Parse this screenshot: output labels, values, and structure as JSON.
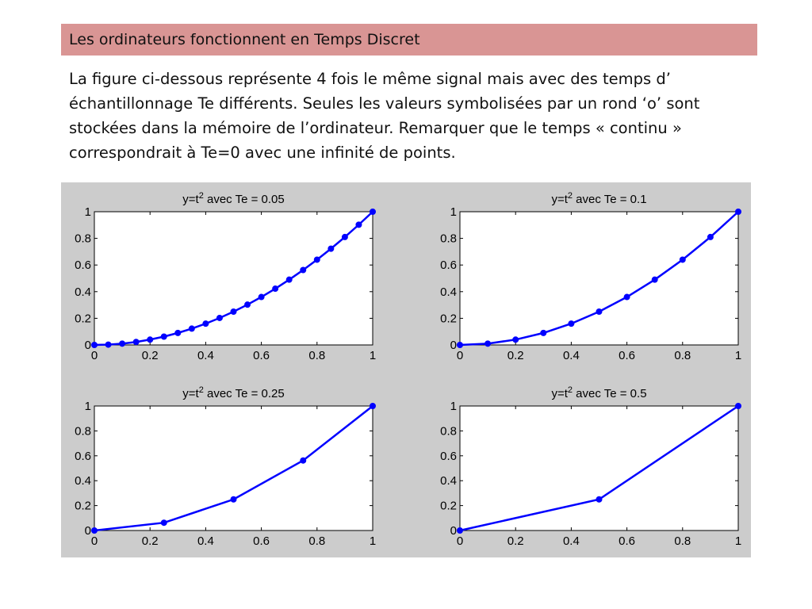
{
  "header": {
    "title": "Les ordinateurs fonctionnent en Temps Discret"
  },
  "body": {
    "paragraph": "La figure ci-dessous représente 4 fois le même signal mais avec des temps d’ échantillonnage Te différents. Seules les valeurs symbolisées par un rond ‘o’ sont stockées dans la mémoire de l’ordinateur. Remarquer que le temps « continu » correspondrait à Te=0 avec une infinité de points."
  },
  "chart_data": [
    {
      "type": "line",
      "title_prefix": "y=t",
      "title_sup": "2",
      "title_suffix": " avec Te = 0.05",
      "x": [
        0,
        0.05,
        0.1,
        0.15,
        0.2,
        0.25,
        0.3,
        0.35,
        0.4,
        0.45,
        0.5,
        0.55,
        0.6,
        0.65,
        0.7,
        0.75,
        0.8,
        0.85,
        0.9,
        0.95,
        1
      ],
      "y": [
        0,
        0.0025,
        0.01,
        0.0225,
        0.04,
        0.0625,
        0.09,
        0.1225,
        0.16,
        0.2025,
        0.25,
        0.3025,
        0.36,
        0.4225,
        0.49,
        0.5625,
        0.64,
        0.7225,
        0.81,
        0.9025,
        1
      ],
      "xlim": [
        0,
        1
      ],
      "ylim": [
        0,
        1
      ],
      "xticks": [
        "0",
        "0.2",
        "0.4",
        "0.6",
        "0.8",
        "1"
      ],
      "yticks": [
        "0",
        "0.2",
        "0.4",
        "0.6",
        "0.8",
        "1"
      ],
      "color": "#0000ff",
      "marker": "o",
      "grid": false
    },
    {
      "type": "line",
      "title_prefix": "y=t",
      "title_sup": "2",
      "title_suffix": " avec Te = 0.1",
      "x": [
        0,
        0.1,
        0.2,
        0.3,
        0.4,
        0.5,
        0.6,
        0.7,
        0.8,
        0.9,
        1
      ],
      "y": [
        0,
        0.01,
        0.04,
        0.09,
        0.16,
        0.25,
        0.36,
        0.49,
        0.64,
        0.81,
        1
      ],
      "xlim": [
        0,
        1
      ],
      "ylim": [
        0,
        1
      ],
      "xticks": [
        "0",
        "0.2",
        "0.4",
        "0.6",
        "0.8",
        "1"
      ],
      "yticks": [
        "0",
        "0.2",
        "0.4",
        "0.6",
        "0.8",
        "1"
      ],
      "color": "#0000ff",
      "marker": "o",
      "grid": false
    },
    {
      "type": "line",
      "title_prefix": "y=t",
      "title_sup": "2",
      "title_suffix": " avec Te = 0.25",
      "x": [
        0,
        0.25,
        0.5,
        0.75,
        1
      ],
      "y": [
        0,
        0.0625,
        0.25,
        0.5625,
        1
      ],
      "xlim": [
        0,
        1
      ],
      "ylim": [
        0,
        1
      ],
      "xticks": [
        "0",
        "0.2",
        "0.4",
        "0.6",
        "0.8",
        "1"
      ],
      "yticks": [
        "0",
        "0.2",
        "0.4",
        "0.6",
        "0.8",
        "1"
      ],
      "color": "#0000ff",
      "marker": "o",
      "grid": false
    },
    {
      "type": "line",
      "title_prefix": "y=t",
      "title_sup": "2",
      "title_suffix": " avec Te = 0.5",
      "x": [
        0,
        0.5,
        1
      ],
      "y": [
        0,
        0.25,
        1
      ],
      "xlim": [
        0,
        1
      ],
      "ylim": [
        0,
        1
      ],
      "xticks": [
        "0",
        "0.2",
        "0.4",
        "0.6",
        "0.8",
        "1"
      ],
      "yticks": [
        "0",
        "0.2",
        "0.4",
        "0.6",
        "0.8",
        "1"
      ],
      "color": "#0000ff",
      "marker": "o",
      "grid": false
    }
  ]
}
